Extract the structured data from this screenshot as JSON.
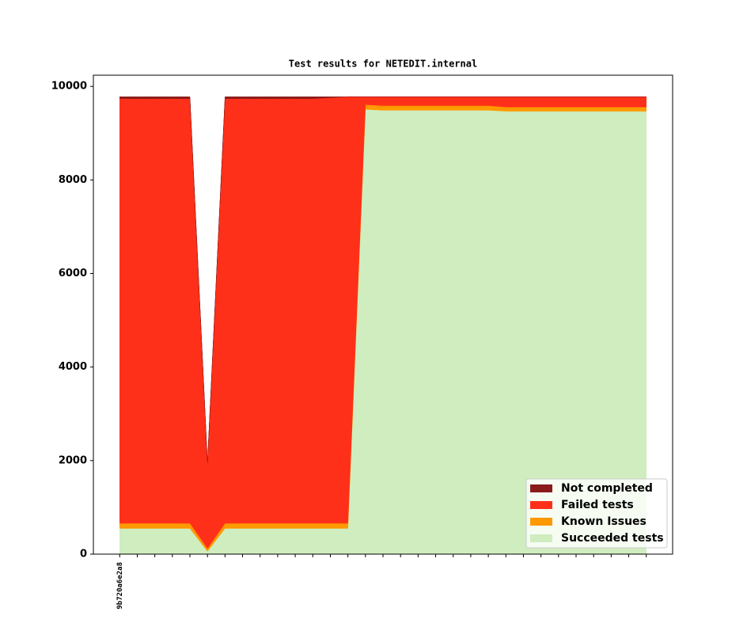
{
  "chart_data": {
    "type": "stacked_area",
    "title": "Test results for NETEDIT.internal",
    "categories": [
      "9b720a6e2a8",
      null,
      null,
      null,
      null,
      null,
      null,
      null,
      null,
      null,
      null,
      null,
      null,
      null,
      null,
      null,
      null,
      null,
      null,
      null,
      null,
      null,
      null,
      null,
      null,
      null,
      null,
      null,
      null,
      null,
      null
    ],
    "series": [
      {
        "name": "Not completed",
        "color": "#8b1a1a",
        "values": [
          40,
          40,
          40,
          40,
          40,
          0,
          40,
          40,
          40,
          40,
          40,
          40,
          20,
          0,
          0,
          0,
          0,
          0,
          0,
          0,
          0,
          0,
          0,
          0,
          0,
          0,
          0,
          0,
          0,
          0,
          0
        ]
      },
      {
        "name": "Failed tests",
        "color": "#ff3019",
        "values": [
          9080,
          9080,
          9080,
          9080,
          9080,
          1830,
          9080,
          9080,
          9080,
          9080,
          9080,
          9080,
          9100,
          9120,
          170,
          190,
          190,
          190,
          190,
          190,
          190,
          190,
          220,
          220,
          220,
          220,
          220,
          220,
          220,
          220,
          220
        ]
      },
      {
        "name": "Known Issues",
        "color": "#ff9900",
        "values": [
          110,
          110,
          110,
          110,
          110,
          60,
          110,
          110,
          110,
          110,
          110,
          110,
          110,
          110,
          100,
          100,
          100,
          100,
          100,
          100,
          100,
          100,
          90,
          90,
          90,
          90,
          90,
          90,
          90,
          90,
          90
        ]
      },
      {
        "name": "Succeeded tests",
        "color": "#cfedbf",
        "values": [
          550,
          550,
          550,
          550,
          550,
          60,
          550,
          550,
          550,
          550,
          550,
          550,
          550,
          550,
          9510,
          9490,
          9490,
          9490,
          9490,
          9490,
          9490,
          9490,
          9470,
          9470,
          9470,
          9470,
          9470,
          9470,
          9470,
          9470,
          9470
        ]
      }
    ],
    "ylim": [
      0,
      10240
    ],
    "yticks": [
      0,
      2000,
      4000,
      6000,
      8000,
      10000
    ],
    "legend": "lower right",
    "grid": false
  }
}
